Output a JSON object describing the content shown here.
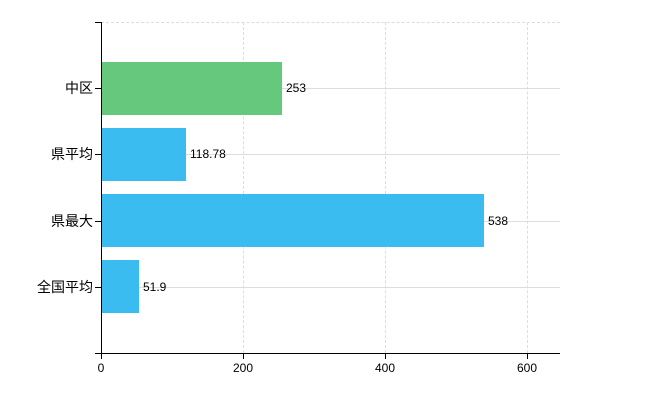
{
  "chart_data": {
    "type": "bar",
    "orientation": "horizontal",
    "title": "",
    "xlabel": "",
    "ylabel": "",
    "categories": [
      "中区",
      "県平均",
      "県最大",
      "全国平均"
    ],
    "values": [
      253,
      118.78,
      538,
      51.9
    ],
    "value_labels": [
      "253",
      "118.78",
      "538",
      "51.9"
    ],
    "series": [
      {
        "name": "value",
        "values": [
          253,
          118.78,
          538,
          51.9
        ]
      }
    ],
    "x_ticks": [
      0,
      200,
      400,
      600
    ],
    "x_tick_labels": [
      "0",
      "200",
      "400",
      "600"
    ],
    "xlim": [
      0,
      648
    ],
    "grid": true,
    "legend_position": "none",
    "bar_colors": [
      "#66C87D",
      "#3BBCF0",
      "#3BBCF0",
      "#3BBCF0"
    ]
  },
  "colors": {
    "bar_green": "#66C87D",
    "bar_blue": "#3BBCF0",
    "gridline": "#DDDDDD",
    "axis": "#000000",
    "text": "#000000",
    "background": "#FFFFFF"
  }
}
